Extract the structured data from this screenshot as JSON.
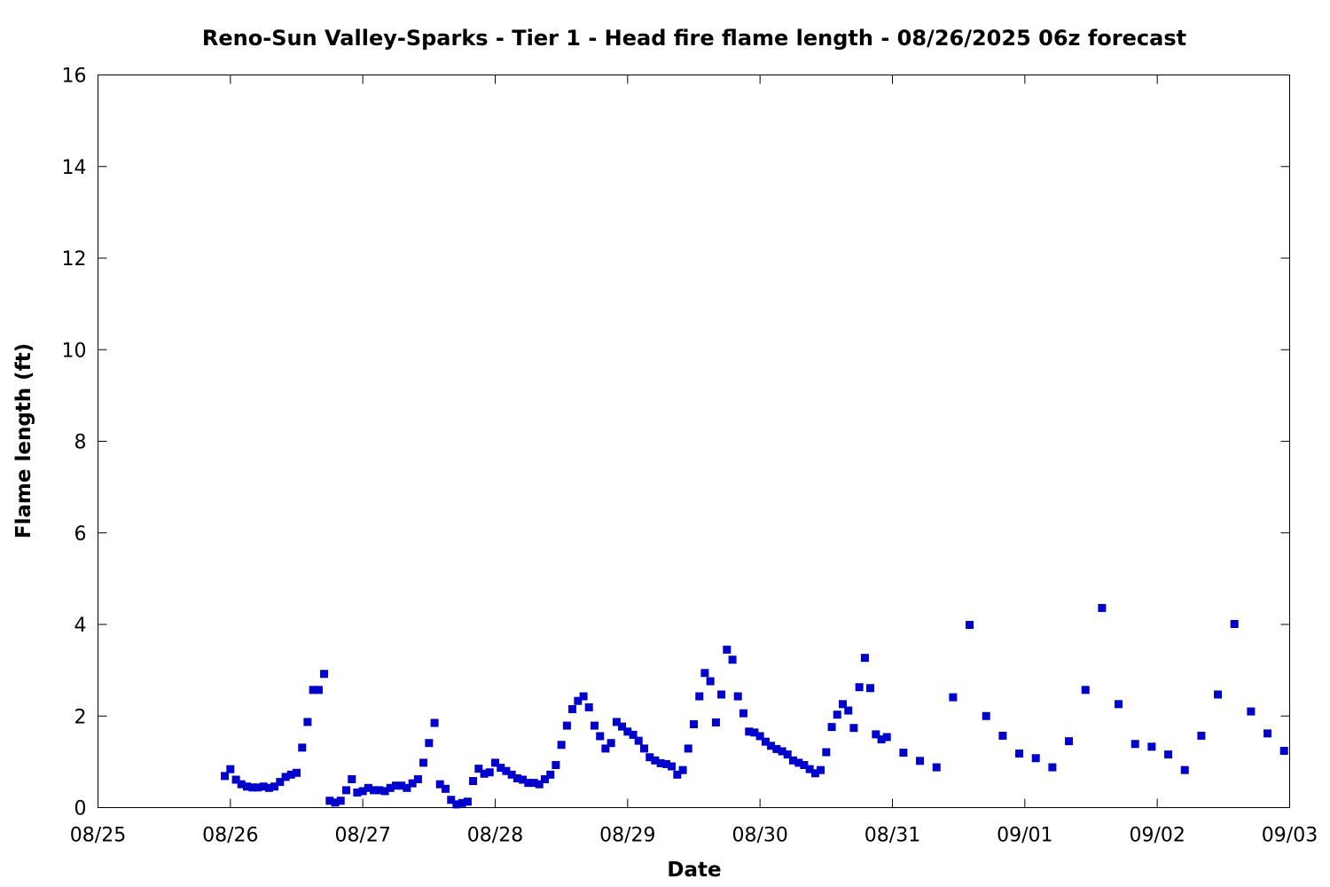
{
  "chart_data": {
    "type": "scatter",
    "title": "Reno-Sun Valley-Sparks - Tier 1 - Head fire flame length - 08/26/2025 06z forecast",
    "xlabel": "Date",
    "ylabel": "Flame length (ft)",
    "x_unit": "days since 08/25",
    "xlim": [
      0,
      9
    ],
    "ylim": [
      0,
      16
    ],
    "xtick_labels": [
      "08/25",
      "08/26",
      "08/27",
      "08/28",
      "08/29",
      "08/30",
      "08/31",
      "09/01",
      "09/02",
      "09/03"
    ],
    "yticks": [
      0,
      2,
      4,
      6,
      8,
      10,
      12,
      14,
      16
    ],
    "grid": false,
    "marker_color": "#0000cc",
    "series": [
      {
        "points": [
          [
            0.958,
            0.69
          ],
          [
            1.0,
            0.84
          ],
          [
            1.042,
            0.61
          ],
          [
            1.083,
            0.51
          ],
          [
            1.125,
            0.46
          ],
          [
            1.167,
            0.44
          ],
          [
            1.208,
            0.44
          ],
          [
            1.25,
            0.46
          ],
          [
            1.292,
            0.43
          ],
          [
            1.333,
            0.46
          ],
          [
            1.375,
            0.56
          ],
          [
            1.417,
            0.67
          ],
          [
            1.458,
            0.72
          ],
          [
            1.5,
            0.76
          ],
          [
            1.542,
            1.31
          ],
          [
            1.583,
            1.87
          ],
          [
            1.625,
            2.57
          ],
          [
            1.667,
            2.57
          ],
          [
            1.708,
            2.92
          ],
          [
            1.75,
            0.15
          ],
          [
            1.792,
            0.11
          ],
          [
            1.833,
            0.15
          ],
          [
            1.875,
            0.38
          ],
          [
            1.917,
            0.62
          ],
          [
            1.958,
            0.33
          ],
          [
            2.0,
            0.36
          ],
          [
            2.042,
            0.43
          ],
          [
            2.083,
            0.38
          ],
          [
            2.125,
            0.38
          ],
          [
            2.167,
            0.36
          ],
          [
            2.208,
            0.43
          ],
          [
            2.25,
            0.48
          ],
          [
            2.292,
            0.48
          ],
          [
            2.333,
            0.43
          ],
          [
            2.375,
            0.53
          ],
          [
            2.417,
            0.62
          ],
          [
            2.458,
            0.98
          ],
          [
            2.5,
            1.41
          ],
          [
            2.542,
            1.85
          ],
          [
            2.583,
            0.51
          ],
          [
            2.625,
            0.41
          ],
          [
            2.667,
            0.17
          ],
          [
            2.708,
            0.07
          ],
          [
            2.75,
            0.1
          ],
          [
            2.792,
            0.13
          ],
          [
            2.833,
            0.58
          ],
          [
            2.875,
            0.85
          ],
          [
            2.917,
            0.74
          ],
          [
            2.958,
            0.77
          ],
          [
            3.0,
            0.98
          ],
          [
            3.042,
            0.87
          ],
          [
            3.083,
            0.8
          ],
          [
            3.125,
            0.72
          ],
          [
            3.167,
            0.64
          ],
          [
            3.208,
            0.61
          ],
          [
            3.25,
            0.54
          ],
          [
            3.292,
            0.54
          ],
          [
            3.333,
            0.51
          ],
          [
            3.375,
            0.62
          ],
          [
            3.417,
            0.72
          ],
          [
            3.458,
            0.93
          ],
          [
            3.5,
            1.37
          ],
          [
            3.542,
            1.79
          ],
          [
            3.583,
            2.15
          ],
          [
            3.625,
            2.33
          ],
          [
            3.667,
            2.43
          ],
          [
            3.708,
            2.19
          ],
          [
            3.75,
            1.79
          ],
          [
            3.792,
            1.56
          ],
          [
            3.833,
            1.29
          ],
          [
            3.875,
            1.41
          ],
          [
            3.917,
            1.87
          ],
          [
            3.958,
            1.77
          ],
          [
            4.0,
            1.66
          ],
          [
            4.042,
            1.59
          ],
          [
            4.083,
            1.46
          ],
          [
            4.125,
            1.29
          ],
          [
            4.167,
            1.1
          ],
          [
            4.208,
            1.03
          ],
          [
            4.25,
            0.97
          ],
          [
            4.292,
            0.95
          ],
          [
            4.333,
            0.9
          ],
          [
            4.375,
            0.72
          ],
          [
            4.417,
            0.82
          ],
          [
            4.458,
            1.29
          ],
          [
            4.5,
            1.82
          ],
          [
            4.542,
            2.43
          ],
          [
            4.583,
            2.94
          ],
          [
            4.625,
            2.76
          ],
          [
            4.667,
            1.86
          ],
          [
            4.708,
            2.47
          ],
          [
            4.75,
            3.45
          ],
          [
            4.792,
            3.23
          ],
          [
            4.833,
            2.43
          ],
          [
            4.875,
            2.06
          ],
          [
            4.917,
            1.66
          ],
          [
            4.958,
            1.64
          ],
          [
            5.0,
            1.56
          ],
          [
            5.042,
            1.44
          ],
          [
            5.083,
            1.35
          ],
          [
            5.125,
            1.28
          ],
          [
            5.167,
            1.23
          ],
          [
            5.208,
            1.16
          ],
          [
            5.25,
            1.03
          ],
          [
            5.292,
            0.98
          ],
          [
            5.333,
            0.93
          ],
          [
            5.375,
            0.84
          ],
          [
            5.417,
            0.75
          ],
          [
            5.458,
            0.82
          ],
          [
            5.5,
            1.21
          ],
          [
            5.542,
            1.76
          ],
          [
            5.583,
            2.03
          ],
          [
            5.625,
            2.26
          ],
          [
            5.667,
            2.12
          ],
          [
            5.708,
            1.74
          ],
          [
            5.75,
            2.63
          ],
          [
            5.792,
            3.27
          ],
          [
            5.833,
            2.61
          ],
          [
            5.875,
            1.6
          ],
          [
            5.917,
            1.49
          ],
          [
            5.958,
            1.54
          ],
          [
            6.083,
            1.2
          ],
          [
            6.208,
            1.02
          ],
          [
            6.333,
            0.88
          ],
          [
            6.458,
            2.41
          ],
          [
            6.583,
            3.99
          ],
          [
            6.708,
            2.0
          ],
          [
            6.833,
            1.57
          ],
          [
            6.958,
            1.18
          ],
          [
            7.083,
            1.08
          ],
          [
            7.208,
            0.88
          ],
          [
            7.333,
            1.45
          ],
          [
            7.458,
            2.57
          ],
          [
            7.583,
            4.36
          ],
          [
            7.708,
            2.26
          ],
          [
            7.833,
            1.39
          ],
          [
            7.958,
            1.33
          ],
          [
            8.083,
            1.16
          ],
          [
            8.208,
            0.82
          ],
          [
            8.333,
            1.57
          ],
          [
            8.458,
            2.47
          ],
          [
            8.583,
            4.01
          ],
          [
            8.708,
            2.1
          ],
          [
            8.833,
            1.62
          ],
          [
            8.958,
            1.24
          ]
        ]
      }
    ]
  }
}
